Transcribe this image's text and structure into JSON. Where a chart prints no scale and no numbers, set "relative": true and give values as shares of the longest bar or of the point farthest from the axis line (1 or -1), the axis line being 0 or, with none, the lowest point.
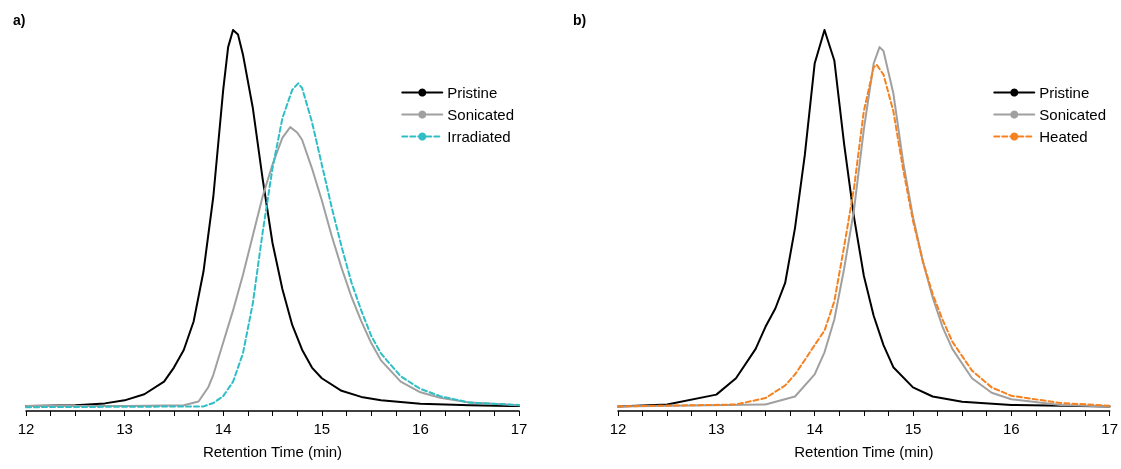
{
  "chart_data": [
    {
      "type": "line",
      "title": "a)",
      "xlabel": "Retention Time (min)",
      "relative": true,
      "xlim": [
        12,
        17
      ],
      "xticks": [
        12,
        {
          "value": 12.25,
          "label": null
        },
        {
          "value": 12.5,
          "label": null
        },
        {
          "value": 12.75,
          "label": null
        },
        13,
        {
          "value": 13.25,
          "label": null
        },
        {
          "value": 13.5,
          "label": null
        },
        {
          "value": 13.75,
          "label": null
        },
        14,
        {
          "value": 14.25,
          "label": null
        },
        {
          "value": 14.5,
          "label": null
        },
        {
          "value": 14.75,
          "label": null
        },
        15,
        {
          "value": 15.25,
          "label": null
        },
        {
          "value": 15.5,
          "label": null
        },
        {
          "value": 15.75,
          "label": null
        },
        16,
        {
          "value": 16.25,
          "label": null
        },
        {
          "value": 16.5,
          "label": null
        },
        {
          "value": 16.75,
          "label": null
        },
        17
      ],
      "grid": false,
      "legend": "top right",
      "marker": "none",
      "series": [
        {
          "name": "Pristine",
          "color": "#000000",
          "line_style": "solid",
          "x": [
            12,
            12.5,
            12.8,
            13.0,
            13.2,
            13.4,
            13.5,
            13.6,
            13.7,
            13.8,
            13.9,
            14.0,
            14.05,
            14.1,
            14.15,
            14.2,
            14.3,
            14.4,
            14.5,
            14.6,
            14.7,
            14.8,
            14.9,
            15.0,
            15.2,
            15.4,
            15.6,
            16.0,
            16.5,
            17
          ],
          "values": [
            0.013,
            0.015,
            0.02,
            0.028,
            0.044,
            0.077,
            0.114,
            0.16,
            0.235,
            0.366,
            0.563,
            0.843,
            0.955,
            1.0,
            0.988,
            0.936,
            0.796,
            0.609,
            0.441,
            0.32,
            0.226,
            0.161,
            0.114,
            0.086,
            0.053,
            0.037,
            0.028,
            0.019,
            0.015,
            0.013
          ]
        },
        {
          "name": "Sonicated",
          "color": "#a0a0a0",
          "line_style": "solid",
          "x": [
            12,
            13,
            13.6,
            13.75,
            13.85,
            13.9,
            14.0,
            14.1,
            14.2,
            14.3,
            14.4,
            14.5,
            14.6,
            14.68,
            14.75,
            14.8,
            14.9,
            15.0,
            15.1,
            15.2,
            15.3,
            15.4,
            15.5,
            15.6,
            15.8,
            16.0,
            16.2,
            16.5,
            17
          ],
          "values": [
            0.013,
            0.013,
            0.015,
            0.025,
            0.063,
            0.095,
            0.18,
            0.264,
            0.357,
            0.46,
            0.563,
            0.647,
            0.717,
            0.745,
            0.731,
            0.712,
            0.637,
            0.553,
            0.46,
            0.376,
            0.3,
            0.236,
            0.179,
            0.133,
            0.077,
            0.049,
            0.035,
            0.022,
            0.015
          ]
        },
        {
          "name": "Irradiated",
          "color": "#2ebfc6",
          "line_style": "dashed",
          "x": [
            12,
            13.8,
            13.9,
            14.0,
            14.1,
            14.2,
            14.3,
            14.4,
            14.5,
            14.6,
            14.7,
            14.76,
            14.8,
            14.9,
            15.0,
            15.1,
            15.2,
            15.3,
            15.4,
            15.5,
            15.6,
            15.8,
            16.0,
            16.2,
            16.5,
            17
          ],
          "values": [
            0.01,
            0.012,
            0.021,
            0.039,
            0.077,
            0.151,
            0.282,
            0.469,
            0.637,
            0.768,
            0.843,
            0.86,
            0.848,
            0.759,
            0.647,
            0.535,
            0.432,
            0.338,
            0.264,
            0.198,
            0.151,
            0.091,
            0.058,
            0.039,
            0.022,
            0.016
          ]
        }
      ]
    },
    {
      "type": "line",
      "title": "b)",
      "xlabel": "Retention Time (min)",
      "relative": true,
      "xlim": [
        12,
        17
      ],
      "xticks": [
        12,
        {
          "value": 12.25,
          "label": null
        },
        {
          "value": 12.5,
          "label": null
        },
        {
          "value": 12.75,
          "label": null
        },
        13,
        {
          "value": 13.25,
          "label": null
        },
        {
          "value": 13.5,
          "label": null
        },
        {
          "value": 13.75,
          "label": null
        },
        14,
        {
          "value": 14.25,
          "label": null
        },
        {
          "value": 14.5,
          "label": null
        },
        {
          "value": 14.75,
          "label": null
        },
        15,
        {
          "value": 15.25,
          "label": null
        },
        {
          "value": 15.5,
          "label": null
        },
        {
          "value": 15.75,
          "label": null
        },
        16,
        {
          "value": 16.25,
          "label": null
        },
        {
          "value": 16.5,
          "label": null
        },
        {
          "value": 16.75,
          "label": null
        },
        17
      ],
      "grid": false,
      "legend": "top right",
      "marker": "none",
      "series": [
        {
          "name": "Pristine",
          "color": "#000000",
          "line_style": "solid",
          "x": [
            12,
            12.5,
            13.0,
            13.2,
            13.4,
            13.5,
            13.6,
            13.7,
            13.8,
            13.9,
            14.0,
            14.1,
            14.2,
            14.3,
            14.4,
            14.5,
            14.6,
            14.7,
            14.8,
            15.0,
            15.2,
            15.5,
            16.0,
            17
          ],
          "values": [
            0.012,
            0.017,
            0.043,
            0.086,
            0.163,
            0.221,
            0.269,
            0.336,
            0.48,
            0.672,
            0.912,
            1.0,
            0.92,
            0.7,
            0.509,
            0.355,
            0.25,
            0.173,
            0.115,
            0.062,
            0.038,
            0.024,
            0.016,
            0.012
          ]
        },
        {
          "name": "Sonicated",
          "color": "#a0a0a0",
          "line_style": "solid",
          "x": [
            12,
            13.5,
            13.8,
            14.0,
            14.1,
            14.2,
            14.3,
            14.4,
            14.5,
            14.6,
            14.66,
            14.7,
            14.8,
            14.9,
            15.0,
            15.1,
            15.2,
            15.3,
            15.4,
            15.6,
            15.8,
            16.0,
            16.5,
            17
          ],
          "values": [
            0.012,
            0.017,
            0.038,
            0.096,
            0.154,
            0.24,
            0.374,
            0.528,
            0.739,
            0.912,
            0.955,
            0.945,
            0.834,
            0.653,
            0.509,
            0.393,
            0.298,
            0.221,
            0.163,
            0.086,
            0.048,
            0.031,
            0.016,
            0.012
          ]
        },
        {
          "name": "Heated",
          "color": "#f5821f",
          "line_style": "dashed",
          "x": [
            12,
            13.2,
            13.5,
            13.7,
            13.8,
            13.9,
            14.0,
            14.1,
            14.2,
            14.3,
            14.4,
            14.5,
            14.6,
            14.63,
            14.7,
            14.8,
            14.9,
            15.0,
            15.1,
            15.2,
            15.3,
            15.4,
            15.6,
            15.8,
            16.0,
            16.5,
            17
          ],
          "values": [
            0.012,
            0.017,
            0.034,
            0.067,
            0.096,
            0.134,
            0.173,
            0.211,
            0.288,
            0.432,
            0.585,
            0.787,
            0.902,
            0.909,
            0.883,
            0.787,
            0.634,
            0.499,
            0.393,
            0.307,
            0.24,
            0.182,
            0.106,
            0.062,
            0.04,
            0.021,
            0.014
          ]
        }
      ]
    }
  ]
}
